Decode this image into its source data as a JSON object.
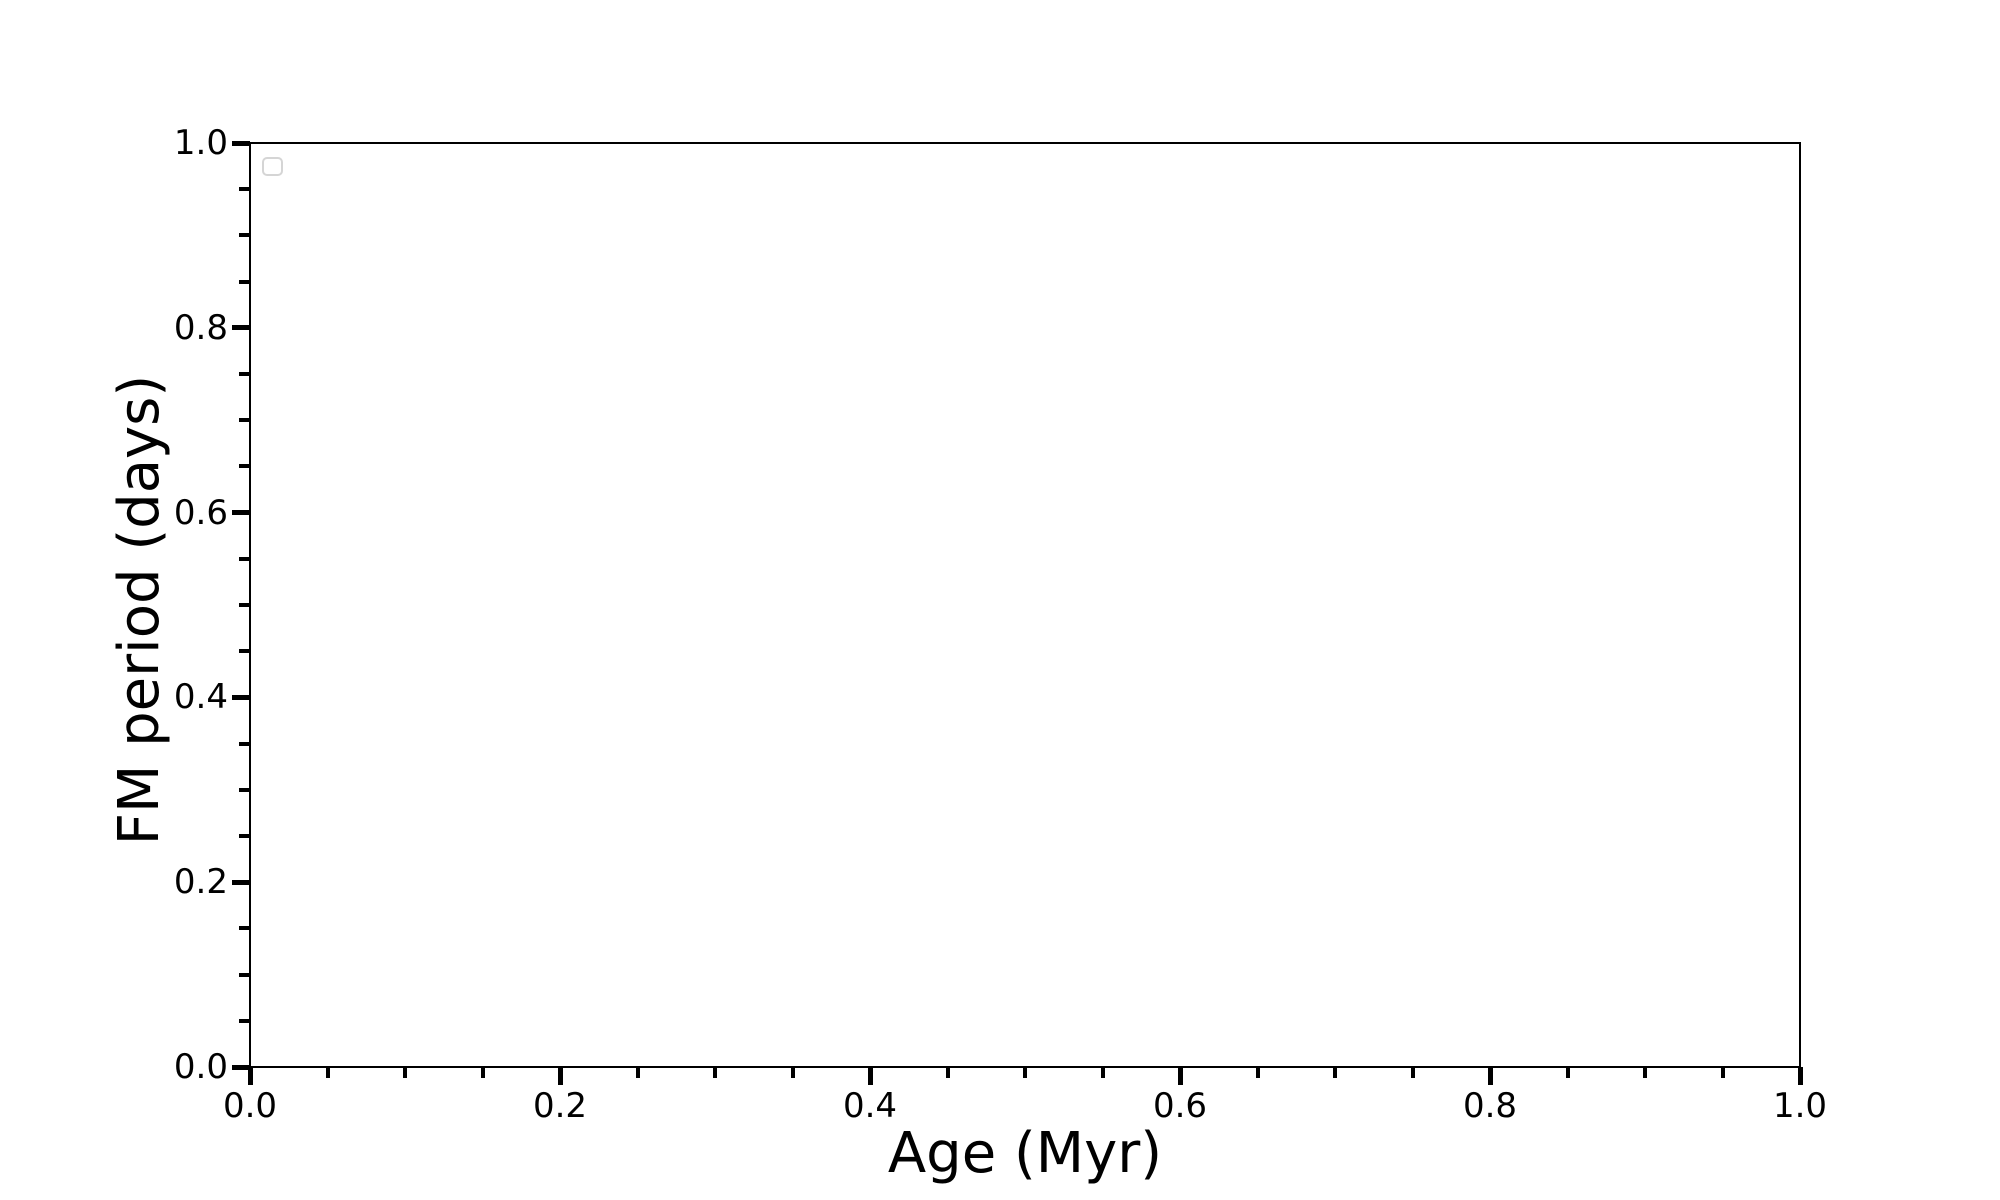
{
  "chart_data": {
    "type": "scatter",
    "title": "",
    "xlabel": "Age (Myr)",
    "ylabel": "FM period (days)",
    "xlim": [
      0.0,
      1.0
    ],
    "ylim": [
      0.0,
      1.0
    ],
    "x_major_ticks": [
      0.0,
      0.2,
      0.4,
      0.6,
      0.8,
      1.0
    ],
    "x_tick_labels": [
      "0.0",
      "0.2",
      "0.4",
      "0.6",
      "0.8",
      "1.0"
    ],
    "y_major_ticks": [
      0.0,
      0.2,
      0.4,
      0.6,
      0.8,
      1.0
    ],
    "y_tick_labels": [
      "0.0",
      "0.2",
      "0.4",
      "0.6",
      "0.8",
      "1.0"
    ],
    "minor_tick_step": 0.05,
    "tick_direction": "out",
    "grid": false,
    "series": [],
    "legend": {
      "visible": true,
      "entries": [],
      "position": "upper left"
    }
  },
  "colors": {
    "background": "#ffffff",
    "spine": "#000000",
    "tick": "#000000",
    "text": "#000000",
    "legend_border": "#d5d5d5"
  }
}
